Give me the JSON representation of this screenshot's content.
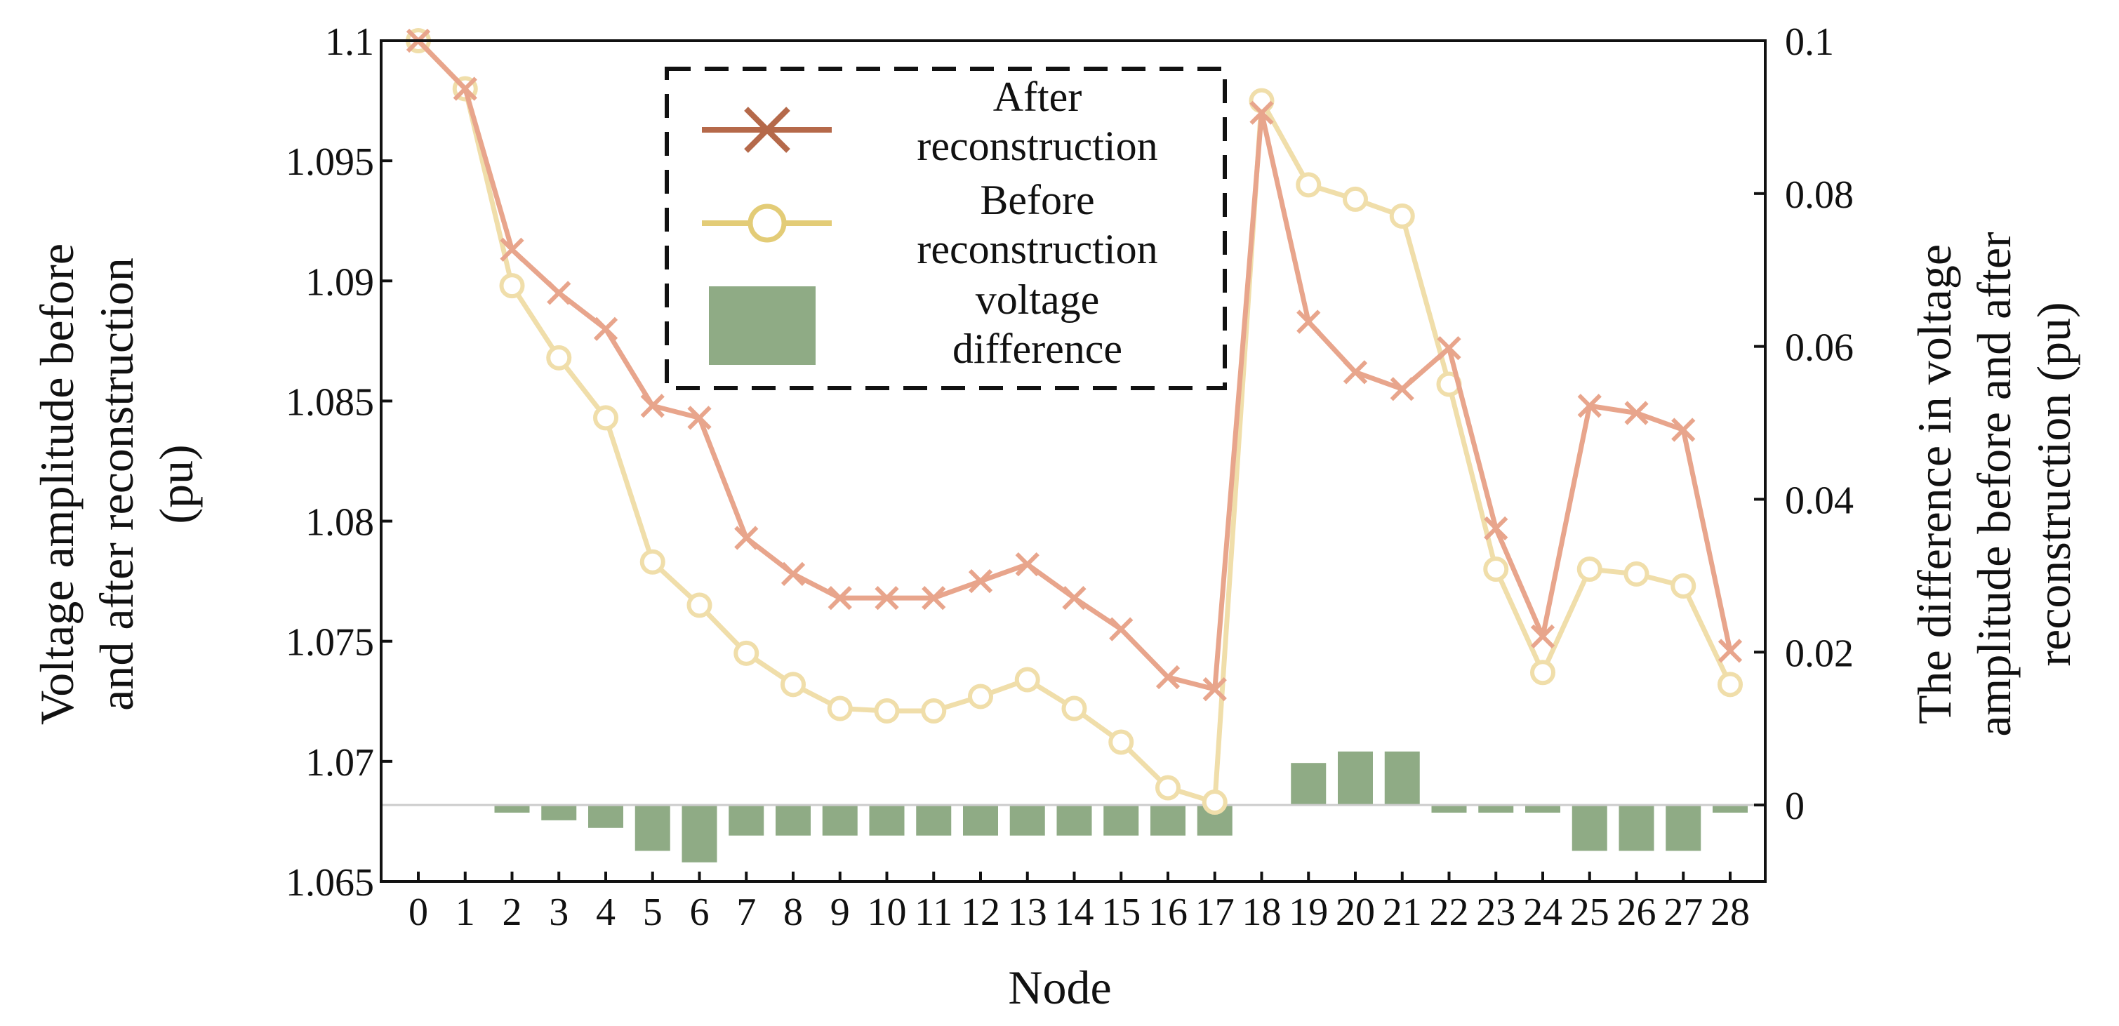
{
  "chart_data": {
    "type": "line+bar",
    "xlabel": "Node",
    "ylabel_left": [
      "Voltage amplitude before",
      "and after reconstruction",
      "(pu)"
    ],
    "ylabel_right": [
      "The difference in voltage",
      "amplitude before and after",
      "reconstruction (pu)"
    ],
    "categories": [
      "0",
      "1",
      "2",
      "3",
      "4",
      "5",
      "6",
      "7",
      "8",
      "9",
      "10",
      "11",
      "12",
      "13",
      "14",
      "15",
      "16",
      "17",
      "18",
      "19",
      "20",
      "21",
      "22",
      "23",
      "24",
      "25",
      "26",
      "27",
      "28"
    ],
    "ylim_left": [
      1.065,
      1.1
    ],
    "yticks_left": [
      "1.065",
      "1.07",
      "1.075",
      "1.08",
      "1.085",
      "1.09",
      "1.095",
      "1.1"
    ],
    "ylim_right": [
      -0.01,
      0.1
    ],
    "yticks_right": [
      "0",
      "0.02",
      "0.04",
      "0.06",
      "0.08",
      "0.1"
    ],
    "series": [
      {
        "name": "After reconstruction",
        "legend_lines": [
          "After",
          "reconstruction"
        ],
        "axis": "left",
        "kind": "line",
        "marker": "x",
        "color": "#e8a58c",
        "legend_color": "#b5694a",
        "values": [
          1.1,
          1.098,
          1.0913,
          1.0895,
          1.088,
          1.0848,
          1.0843,
          1.0793,
          1.0778,
          1.0768,
          1.0768,
          1.0768,
          1.0775,
          1.0782,
          1.0768,
          1.0755,
          1.0735,
          1.073,
          1.097,
          1.0883,
          1.0862,
          1.0855,
          1.0872,
          1.0797,
          1.0752,
          1.0848,
          1.0845,
          1.0838,
          1.0746
        ]
      },
      {
        "name": "Before reconstruction",
        "legend_lines": [
          "Before",
          "reconstruction"
        ],
        "axis": "left",
        "kind": "line",
        "marker": "o",
        "color": "#f0deaa",
        "legend_color": "#e3cc77",
        "values": [
          1.1,
          1.098,
          1.0898,
          1.0868,
          1.0843,
          1.0783,
          1.0765,
          1.0745,
          1.0732,
          1.0722,
          1.0721,
          1.0721,
          1.0727,
          1.0734,
          1.0722,
          1.0708,
          1.0689,
          1.0683,
          1.0975,
          1.094,
          1.0934,
          1.0927,
          1.0857,
          1.078,
          1.0737,
          1.078,
          1.0778,
          1.0773,
          1.0732
        ]
      },
      {
        "name": "voltage difference",
        "legend_lines": [
          "voltage",
          "difference"
        ],
        "axis": "right",
        "kind": "bar",
        "color": "#8fab85",
        "values": [
          0,
          0,
          -0.001,
          -0.002,
          -0.003,
          -0.006,
          -0.0075,
          -0.004,
          -0.004,
          -0.004,
          -0.004,
          -0.004,
          -0.004,
          -0.004,
          -0.004,
          -0.004,
          -0.004,
          -0.004,
          0,
          0.0055,
          0.007,
          0.007,
          -0.001,
          -0.001,
          -0.001,
          -0.006,
          -0.006,
          -0.006,
          -0.001
        ]
      }
    ]
  }
}
